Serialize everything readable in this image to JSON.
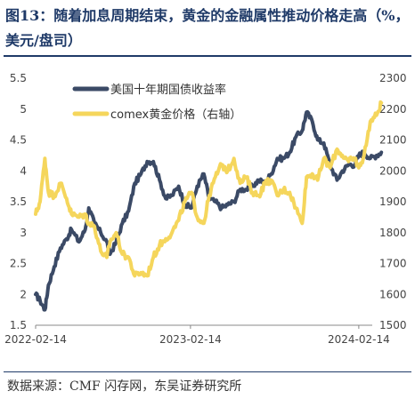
{
  "title": "图13：随着加息周期结束，黄金的金融属性推动价格走高（%，美元/盘司）",
  "source": "数据来源：CMF 闪存网，东吴证券研究所",
  "chart_data": {
    "type": "line",
    "x_ticks": [
      "2022-02-14",
      "2023-02-14",
      "2024-02-14"
    ],
    "y_left": {
      "range": [
        1.5,
        5.5
      ],
      "ticks": [
        1.5,
        2,
        2.5,
        3,
        3.5,
        4,
        4.5,
        5,
        5.5
      ]
    },
    "y_right": {
      "range": [
        1500,
        2300
      ],
      "ticks": [
        1500,
        1600,
        1700,
        1800,
        1900,
        2000,
        2100,
        2200,
        2300
      ]
    },
    "legend_position": "top-center",
    "series": [
      {
        "name": "美国十年期国债收益率",
        "axis": "left",
        "color": "#3b4a66",
        "x": [
          "2022-02-14",
          "2022-02-24",
          "2022-03-07",
          "2022-03-15",
          "2022-03-28",
          "2022-04-11",
          "2022-04-25",
          "2022-05-06",
          "2022-05-23",
          "2022-06-06",
          "2022-06-14",
          "2022-06-27",
          "2022-07-11",
          "2022-07-25",
          "2022-08-01",
          "2022-08-15",
          "2022-08-29",
          "2022-09-12",
          "2022-09-26",
          "2022-10-10",
          "2022-10-24",
          "2022-11-07",
          "2022-11-21",
          "2022-12-05",
          "2022-12-19",
          "2023-01-03",
          "2023-01-17",
          "2023-02-01",
          "2023-02-14",
          "2023-03-01",
          "2023-03-13",
          "2023-03-27",
          "2023-04-10",
          "2023-04-24",
          "2023-05-08",
          "2023-05-22",
          "2023-06-05",
          "2023-06-19",
          "2023-07-03",
          "2023-07-17",
          "2023-07-31",
          "2023-08-14",
          "2023-08-28",
          "2023-09-11",
          "2023-09-25",
          "2023-10-09",
          "2023-10-19",
          "2023-11-01",
          "2023-11-13",
          "2023-11-27",
          "2023-12-11",
          "2023-12-27",
          "2024-01-08",
          "2024-01-22",
          "2024-02-05",
          "2024-02-14",
          "2024-02-26",
          "2024-03-11",
          "2024-03-25",
          "2024-04-05"
        ],
        "values": [
          2.0,
          1.9,
          1.75,
          2.15,
          2.45,
          2.75,
          2.9,
          3.05,
          2.85,
          3.05,
          3.4,
          3.15,
          3.0,
          2.85,
          2.65,
          2.85,
          3.15,
          3.35,
          3.8,
          3.95,
          4.15,
          4.15,
          3.85,
          3.55,
          3.6,
          3.75,
          3.45,
          3.4,
          3.75,
          3.95,
          3.55,
          3.5,
          3.4,
          3.45,
          3.5,
          3.7,
          3.7,
          3.75,
          3.85,
          3.8,
          3.95,
          4.2,
          4.2,
          4.3,
          4.55,
          4.65,
          4.95,
          4.8,
          4.5,
          4.45,
          4.1,
          3.85,
          4.0,
          4.1,
          4.1,
          4.25,
          4.3,
          4.2,
          4.25,
          4.3
        ]
      },
      {
        "name": "comex黄金价格（右轴）",
        "axis": "right",
        "color": "#f5d65c",
        "x": [
          "2022-02-14",
          "2022-02-24",
          "2022-03-07",
          "2022-03-15",
          "2022-03-28",
          "2022-04-11",
          "2022-04-25",
          "2022-05-06",
          "2022-05-23",
          "2022-06-06",
          "2022-06-14",
          "2022-06-27",
          "2022-07-11",
          "2022-07-25",
          "2022-08-01",
          "2022-08-15",
          "2022-08-29",
          "2022-09-12",
          "2022-09-26",
          "2022-10-10",
          "2022-10-24",
          "2022-11-07",
          "2022-11-21",
          "2022-12-05",
          "2022-12-19",
          "2023-01-03",
          "2023-01-17",
          "2023-02-01",
          "2023-02-14",
          "2023-03-01",
          "2023-03-13",
          "2023-03-27",
          "2023-04-10",
          "2023-04-24",
          "2023-05-08",
          "2023-05-22",
          "2023-06-05",
          "2023-06-19",
          "2023-07-03",
          "2023-07-17",
          "2023-07-31",
          "2023-08-14",
          "2023-08-28",
          "2023-09-11",
          "2023-09-25",
          "2023-10-09",
          "2023-10-19",
          "2023-11-01",
          "2023-11-13",
          "2023-11-27",
          "2023-12-11",
          "2023-12-27",
          "2024-01-08",
          "2024-01-22",
          "2024-02-05",
          "2024-02-14",
          "2024-02-26",
          "2024-03-11",
          "2024-03-25",
          "2024-04-05"
        ],
        "values": [
          1860,
          1900,
          2040,
          1930,
          1920,
          1960,
          1910,
          1860,
          1850,
          1860,
          1830,
          1820,
          1740,
          1720,
          1770,
          1800,
          1730,
          1720,
          1660,
          1670,
          1660,
          1720,
          1760,
          1780,
          1800,
          1840,
          1900,
          1930,
          1850,
          1830,
          1920,
          1980,
          2020,
          2000,
          2040,
          1960,
          1980,
          1930,
          1920,
          1960,
          1970,
          1920,
          1940,
          1930,
          1880,
          1830,
          1980,
          1990,
          1970,
          2040,
          2010,
          2070,
          2050,
          2030,
          2040,
          2010,
          2050,
          2160,
          2180,
          2220
        ]
      }
    ]
  }
}
